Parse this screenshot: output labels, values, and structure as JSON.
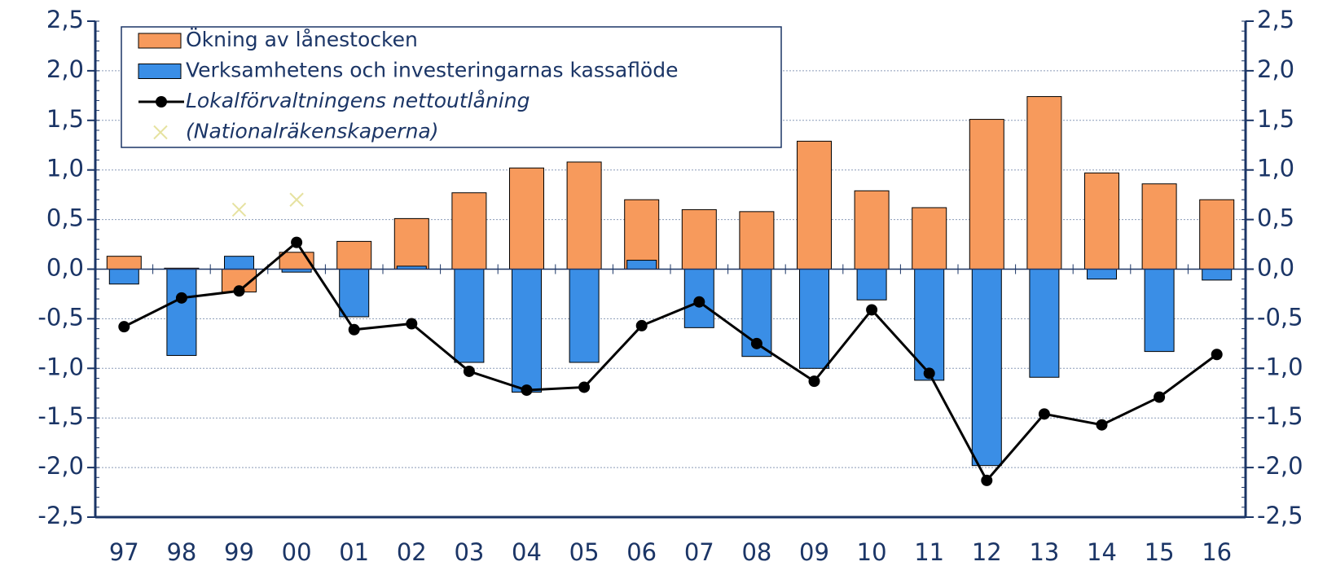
{
  "chart_data": {
    "type": "bar",
    "categories": [
      "97",
      "98",
      "99",
      "00",
      "01",
      "02",
      "03",
      "04",
      "05",
      "06",
      "07",
      "08",
      "09",
      "10",
      "11",
      "12",
      "13",
      "14",
      "15",
      "16"
    ],
    "series": [
      {
        "name": "Ökning av lånestocken",
        "type": "bar",
        "color": "#f79a5c",
        "values": [
          0.13,
          0.01,
          -0.23,
          0.17,
          0.28,
          0.51,
          0.77,
          1.02,
          1.08,
          0.7,
          0.6,
          0.58,
          1.29,
          0.79,
          0.62,
          1.51,
          1.74,
          0.97,
          0.86,
          0.7
        ]
      },
      {
        "name": "Verksamhetens och investeringarnas kassaflöde",
        "type": "bar",
        "color": "#3a8ee6",
        "values": [
          -0.15,
          -0.87,
          0.13,
          -0.03,
          -0.48,
          0.03,
          -0.94,
          -1.24,
          -0.94,
          0.09,
          -0.59,
          -0.88,
          -1.0,
          -0.31,
          -1.12,
          -1.98,
          -1.09,
          -0.1,
          -0.83,
          -0.11
        ]
      },
      {
        "name": "Lokalförvaltningens nettoutlåning",
        "type": "line",
        "color": "#000000",
        "values": [
          -0.58,
          -0.29,
          -0.22,
          0.27,
          -0.61,
          -0.55,
          -1.03,
          -1.22,
          -1.19,
          -0.57,
          -0.33,
          -0.75,
          -1.13,
          -0.41,
          -1.05,
          -2.13,
          -1.46,
          -1.57,
          -1.29,
          -0.86
        ]
      },
      {
        "name": "(Nationalräkenskaperna)",
        "type": "scatter",
        "color": "#e6e2a0",
        "values": [
          null,
          null,
          0.6,
          0.7,
          null,
          null,
          null,
          null,
          null,
          null,
          null,
          null,
          null,
          null,
          null,
          null,
          null,
          null,
          null,
          null
        ]
      }
    ],
    "ylim": [
      -2.5,
      2.5
    ],
    "yticks": [
      {
        "value": -2.5,
        "label": "-2,5"
      },
      {
        "value": -2.0,
        "label": "-2,0"
      },
      {
        "value": -1.5,
        "label": "-1,5"
      },
      {
        "value": -1.0,
        "label": "-1,0"
      },
      {
        "value": -0.5,
        "label": "-0,5"
      },
      {
        "value": 0.0,
        "label": "0,0"
      },
      {
        "value": 0.5,
        "label": "0,5"
      },
      {
        "value": 1.0,
        "label": "1,0"
      },
      {
        "value": 1.5,
        "label": "1,5"
      },
      {
        "value": 2.0,
        "label": "2,0"
      },
      {
        "value": 2.5,
        "label": "2,5"
      }
    ],
    "y2lim": [
      -2.5,
      2.5
    ],
    "y2ticks": [
      {
        "value": -2.5,
        "label": "-2,5"
      },
      {
        "value": -2.0,
        "label": "-2,0"
      },
      {
        "value": -1.5,
        "label": "-1,5"
      },
      {
        "value": -1.0,
        "label": "-1,0"
      },
      {
        "value": -0.5,
        "label": "-0,5"
      },
      {
        "value": 0.0,
        "label": "0,0"
      },
      {
        "value": 0.5,
        "label": "0,5"
      },
      {
        "value": 1.0,
        "label": "1,0"
      },
      {
        "value": 1.5,
        "label": "1,5"
      },
      {
        "value": 2.0,
        "label": "2,0"
      },
      {
        "value": 2.5,
        "label": "2,5"
      }
    ],
    "grid": true,
    "legend": "top-left"
  }
}
